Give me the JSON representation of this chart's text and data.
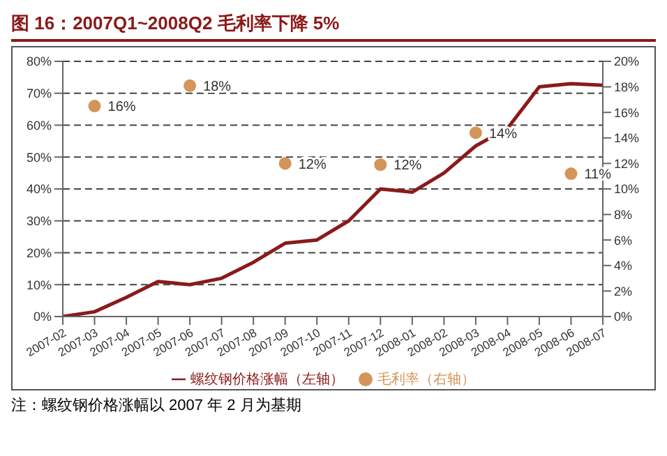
{
  "chart_data": {
    "type": "line",
    "title": "图 16：2007Q1~2008Q2 毛利率下降 5%",
    "annotations": [
      "注：螺纹钢价格涨幅以 2007 年 2 月为基期"
    ],
    "categories": [
      "2007-02",
      "2007-03",
      "2007-04",
      "2007-05",
      "2007-06",
      "2007-07",
      "2007-08",
      "2007-09",
      "2007-10",
      "2007-11",
      "2007-12",
      "2008-01",
      "2008-02",
      "2008-03",
      "2008-04",
      "2008-05",
      "2008-06",
      "2008-07"
    ],
    "series": [
      {
        "name": "螺纹钢价格涨幅（左轴）",
        "color": "#8b1a1a",
        "marker": "none",
        "values": [
          0,
          1.5,
          6,
          11,
          10,
          12,
          17,
          23,
          24,
          30,
          40,
          39,
          45,
          53.5,
          59,
          72,
          73,
          72.5
        ]
      },
      {
        "name": "毛利率（右轴）",
        "type": "scatter",
        "axis": "y2",
        "color": "#d4955a",
        "marker": "circle",
        "values": [
          null,
          16.5,
          null,
          null,
          18.1,
          null,
          null,
          12,
          null,
          null,
          11.9,
          null,
          null,
          14.4,
          null,
          null,
          11.2,
          null
        ],
        "value_labels": [
          null,
          "16%",
          null,
          null,
          "18%",
          null,
          null,
          "12%",
          null,
          null,
          "12%",
          null,
          null,
          "14%",
          null,
          null,
          "11%",
          null
        ]
      }
    ],
    "ylim": [
      0,
      80
    ],
    "yticks": [
      {
        "value": 0,
        "label": "0%"
      },
      {
        "value": 10,
        "label": "10%"
      },
      {
        "value": 20,
        "label": "20%"
      },
      {
        "value": 30,
        "label": "30%"
      },
      {
        "value": 40,
        "label": "40%"
      },
      {
        "value": 50,
        "label": "50%"
      },
      {
        "value": 60,
        "label": "60%"
      },
      {
        "value": 70,
        "label": "70%"
      },
      {
        "value": 80,
        "label": "80%"
      }
    ],
    "y2lim": [
      0,
      20
    ],
    "y2ticks": [
      {
        "value": 0,
        "label": "0%"
      },
      {
        "value": 2,
        "label": "2%"
      },
      {
        "value": 4,
        "label": "4%"
      },
      {
        "value": 6,
        "label": "6%"
      },
      {
        "value": 8,
        "label": "8%"
      },
      {
        "value": 10,
        "label": "10%"
      },
      {
        "value": 12,
        "label": "12%"
      },
      {
        "value": 14,
        "label": "14%"
      },
      {
        "value": 16,
        "label": "16%"
      },
      {
        "value": 18,
        "label": "18%"
      },
      {
        "value": 20,
        "label": "20%"
      }
    ],
    "grid": "y",
    "legend": "bottom"
  }
}
